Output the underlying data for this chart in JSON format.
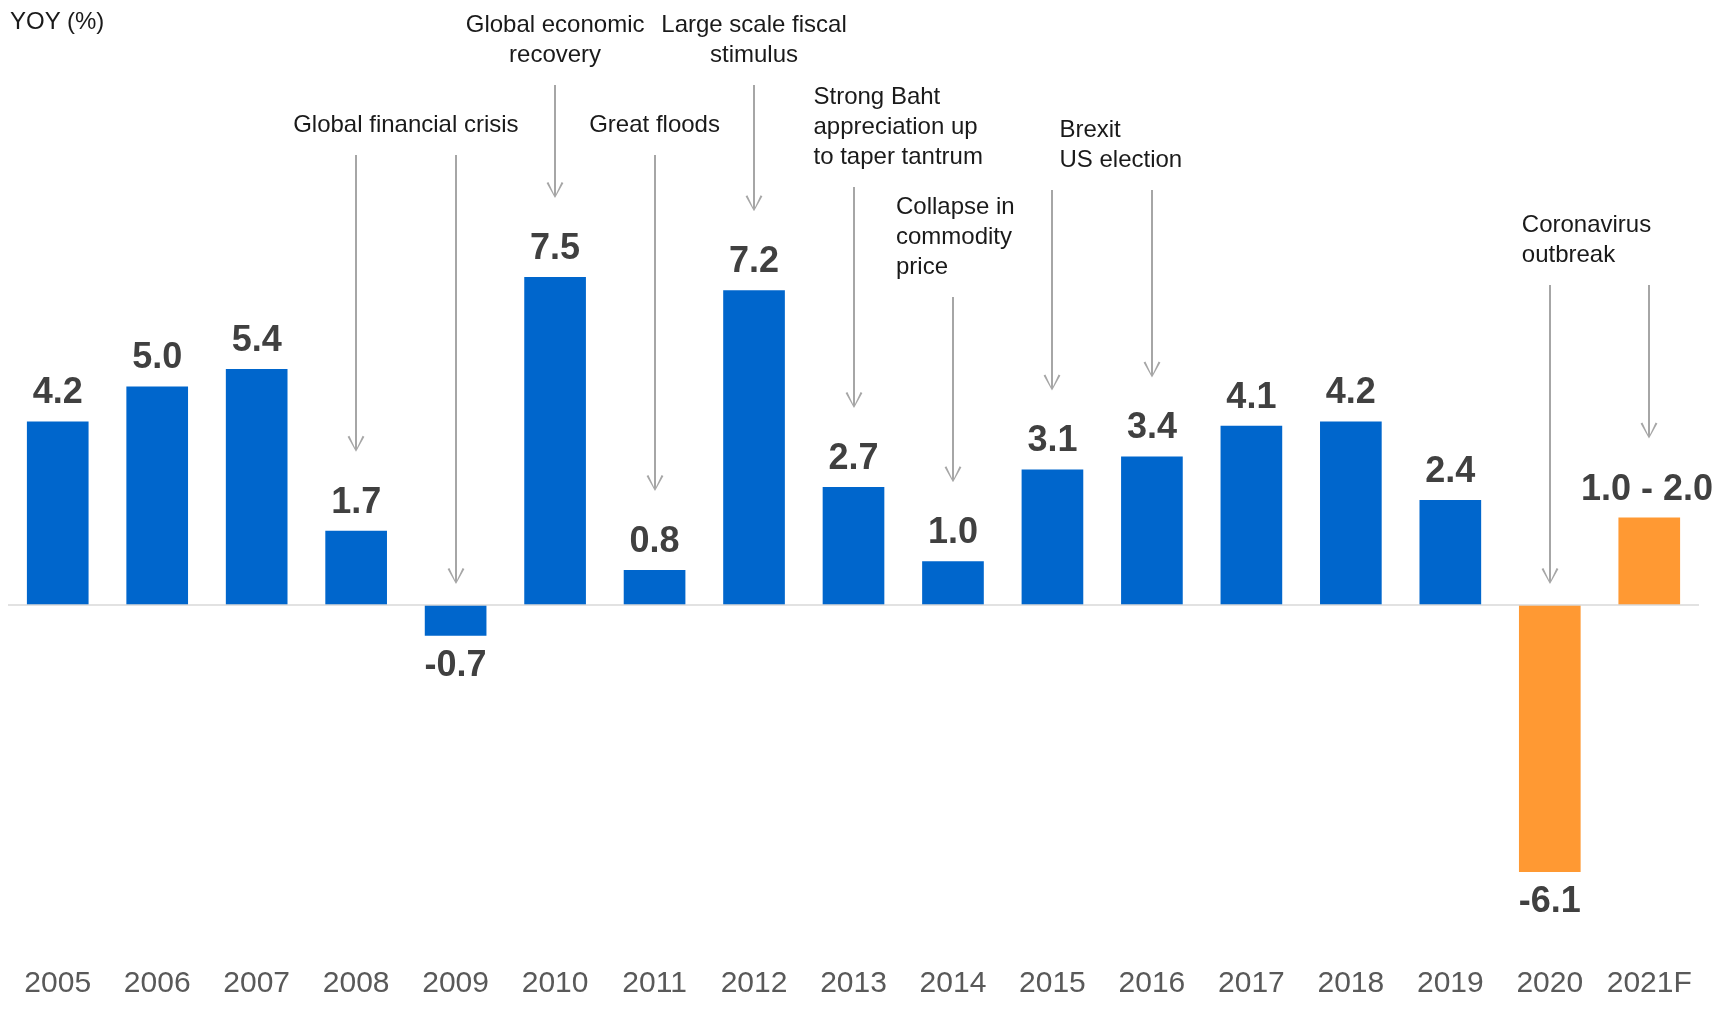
{
  "chart_data": {
    "type": "bar",
    "categories": [
      "2005",
      "2006",
      "2007",
      "2008",
      "2009",
      "2010",
      "2011",
      "2012",
      "2013",
      "2014",
      "2015",
      "2016",
      "2017",
      "2018",
      "2019",
      "2020",
      "2021F"
    ],
    "values": [
      4.2,
      5.0,
      5.4,
      1.7,
      -0.7,
      7.5,
      0.8,
      7.2,
      2.7,
      1.0,
      3.1,
      3.4,
      4.1,
      4.2,
      2.4,
      -6.1,
      2.0
    ],
    "value_labels": [
      "4.2",
      "5.0",
      "5.4",
      "1.7",
      "-0.7",
      "7.5",
      "0.8",
      "7.2",
      "2.7",
      "1.0",
      "3.1",
      "3.4",
      "4.1",
      "4.2",
      "2.4",
      "-6.1",
      null
    ],
    "colors": [
      "#0066cc",
      "#0066cc",
      "#0066cc",
      "#0066cc",
      "#0066cc",
      "#0066cc",
      "#0066cc",
      "#0066cc",
      "#0066cc",
      "#0066cc",
      "#0066cc",
      "#0066cc",
      "#0066cc",
      "#0066cc",
      "#0066cc",
      "#ff9933",
      "#ff9933"
    ],
    "annotations": [
      "YOY (%)",
      "Global financial crisis",
      "Global economic\nrecovery",
      "Great floods",
      "Large scale fiscal\nstimulus",
      "Strong Baht\nappreciation up\nto taper tantrum",
      "Collapse in\ncommodity\nprice",
      "Brexit\nUS election",
      "Coronavirus\noutbreak",
      {
        "text": "1.0 - 2.0",
        "x": "2021F",
        "y": 2.0
      }
    ],
    "legend": false
  }
}
